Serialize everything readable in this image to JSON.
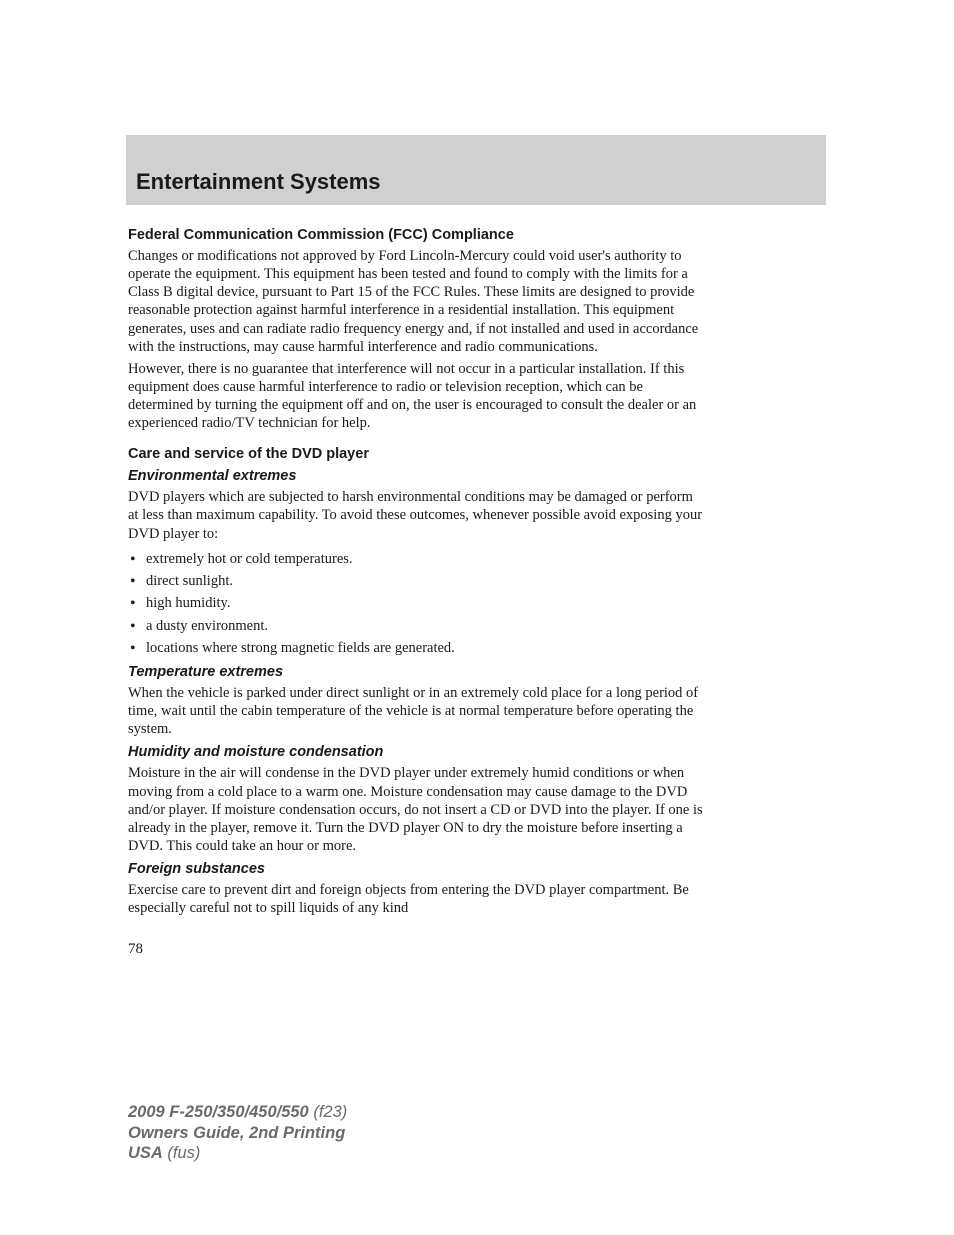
{
  "header": {
    "section_title": "Entertainment Systems"
  },
  "content": {
    "h1": "Federal Communication Commission (FCC) Compliance",
    "p1": "Changes or modifications not approved by Ford Lincoln-Mercury could void user's authority to operate the equipment. This equipment has been tested and found to comply with the limits for a Class B digital device, pursuant to Part 15 of the FCC Rules. These limits are designed to provide reasonable protection against harmful interference in a residential installation. This equipment generates, uses and can radiate radio frequency energy and, if not installed and used in accordance with the instructions, may cause harmful interference and radio communications.",
    "p2": "However, there is no guarantee that interference will not occur in a particular installation. If this equipment does cause harmful interference to radio or television reception, which can be determined by turning the equipment off and on, the user is encouraged to consult the dealer or an experienced radio/TV technician for help.",
    "h2": "Care and service of the DVD player",
    "h3": "Environmental extremes",
    "p3": "DVD players which are subjected to harsh environmental conditions may be damaged or perform at less than maximum capability. To avoid these outcomes, whenever possible avoid exposing your DVD player to:",
    "bullets": [
      "extremely hot or cold temperatures.",
      "direct sunlight.",
      "high humidity.",
      "a dusty environment.",
      "locations where strong magnetic fields are generated."
    ],
    "h4": "Temperature extremes",
    "p4": "When the vehicle is parked under direct sunlight or in an extremely cold place for a long period of time, wait until the cabin temperature of the vehicle is at normal temperature before operating the system.",
    "h5": "Humidity and moisture condensation",
    "p5": "Moisture in the air will condense in the DVD player under extremely humid conditions or when moving from a cold place to a warm one. Moisture condensation may cause damage to the DVD and/or player. If moisture condensation occurs, do not insert a CD or DVD into the player. If one is already in the player, remove it. Turn the DVD player ON to dry the moisture before inserting a DVD. This could take an hour or more.",
    "h6": "Foreign substances",
    "p6": "Exercise care to prevent dirt and foreign objects from entering the DVD player compartment. Be especially careful not to spill liquids of any kind"
  },
  "page_number": "78",
  "footer": {
    "model_bold": "2009 F-250/350/450/550",
    "model_code": " (f23)",
    "guide": "Owners Guide, 2nd Printing",
    "country_bold": "USA",
    "country_code": " (fus)"
  },
  "colors": {
    "header_bg": "#d0d0d0",
    "text": "#1a1a1a",
    "footer_text": "#6a6a6a",
    "page_bg": "#ffffff"
  }
}
